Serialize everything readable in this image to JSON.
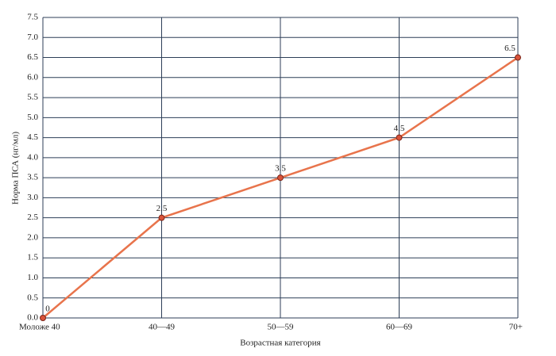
{
  "chart_data": {
    "type": "line",
    "x_label": "Возрастная категория",
    "y_label": "Норма ПСА (нг/мл)",
    "categories": [
      "Моложе 40",
      "40—49",
      "50—59",
      "60—69",
      "70+"
    ],
    "series": [
      {
        "color": "#e8744c",
        "values": [
          0,
          2.5,
          3.5,
          4.5,
          6.5
        ]
      }
    ],
    "ylim": [
      0,
      7.5
    ],
    "yticks": [
      {
        "value": 0,
        "label": "0.0"
      },
      0.5,
      {
        "value": 1,
        "label": "1.0"
      },
      1.5,
      {
        "value": 2,
        "label": "2.0"
      },
      2.5,
      {
        "value": 3,
        "label": "3.0"
      },
      3.5,
      {
        "value": 4,
        "label": "4.0"
      },
      4.5,
      {
        "value": 5,
        "label": "5.0"
      },
      5.5,
      {
        "value": 6,
        "label": "6.0"
      },
      6.5,
      {
        "value": 7,
        "label": "7.0"
      },
      7.5
    ],
    "grid": true
  }
}
